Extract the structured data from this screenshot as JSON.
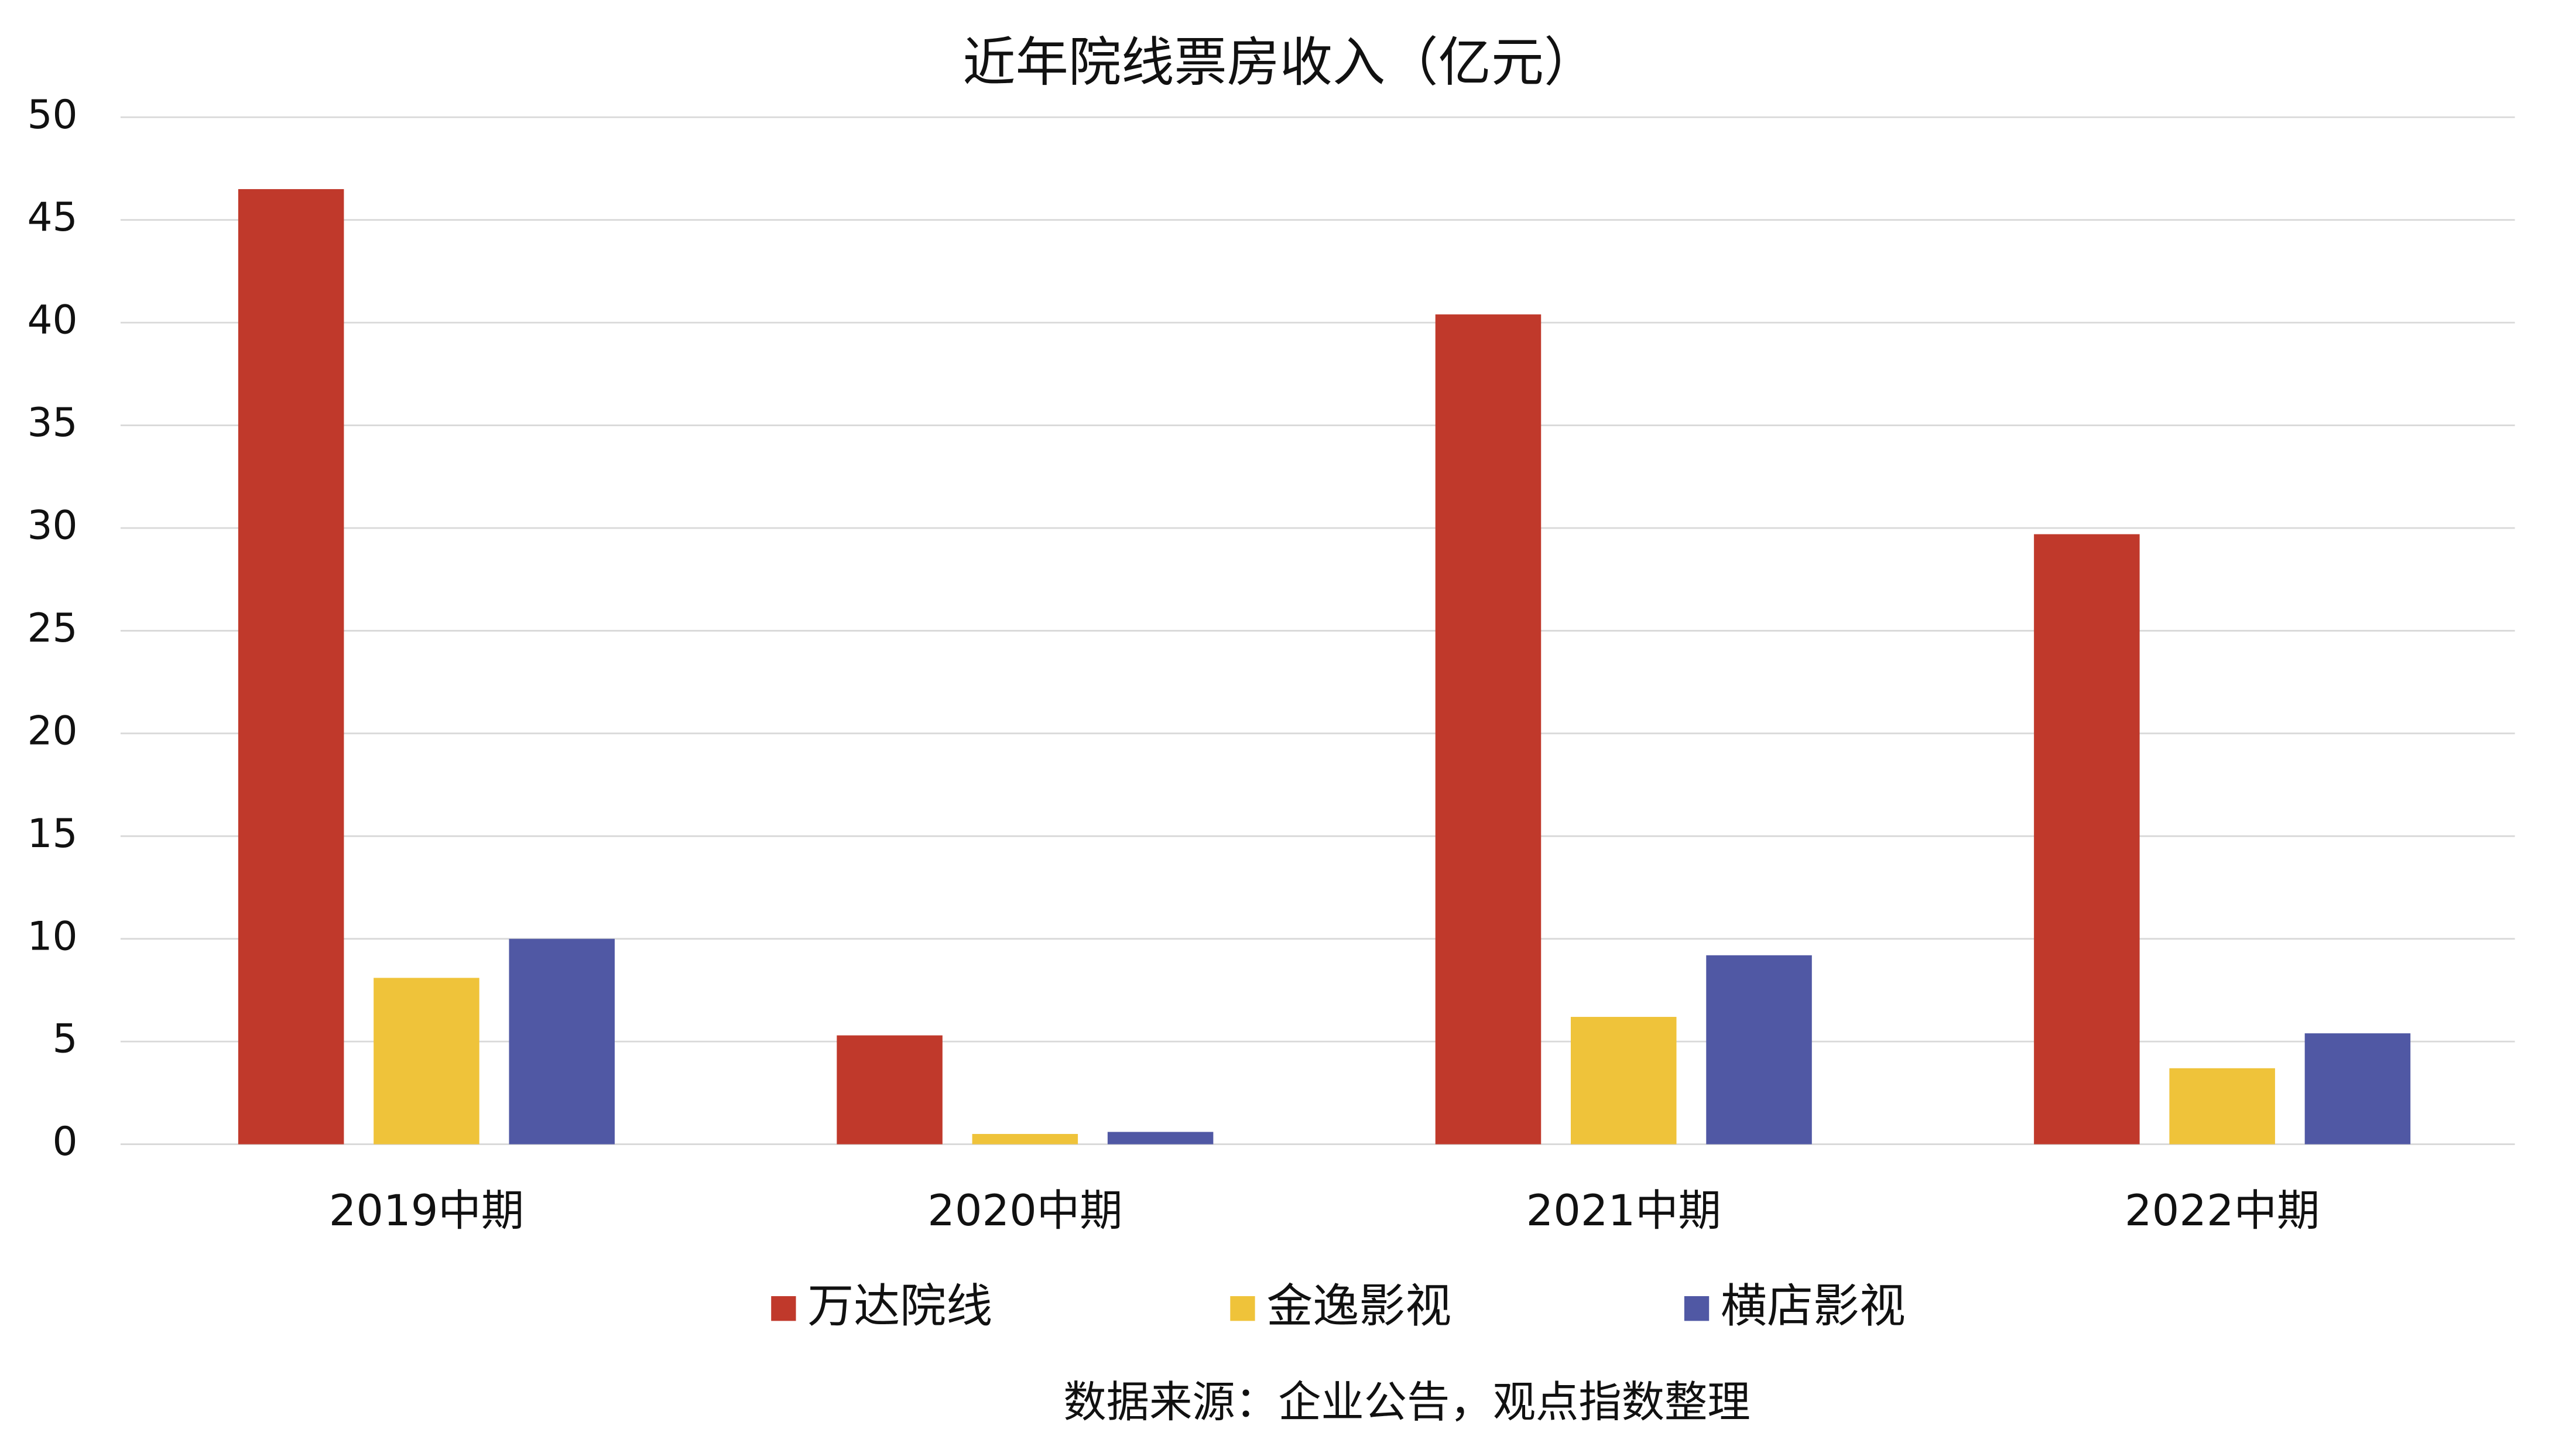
{
  "chart_data": {
    "type": "bar",
    "title": "近年院线票房收入（亿元）",
    "categories": [
      "2019中期",
      "2020中期",
      "2021中期",
      "2022中期"
    ],
    "series": [
      {
        "name": "万达院线",
        "color": "#c0392b",
        "values": [
          46.5,
          5.3,
          40.4,
          29.7
        ]
      },
      {
        "name": "金逸影视",
        "color": "#efc33a",
        "values": [
          8.1,
          0.5,
          6.2,
          3.7
        ]
      },
      {
        "name": "横店影视",
        "color": "#5058a4",
        "values": [
          10.0,
          0.6,
          9.2,
          5.4
        ]
      }
    ],
    "ylim": [
      0,
      50
    ],
    "yticks": [
      0,
      5,
      10,
      15,
      20,
      25,
      30,
      35,
      40,
      45,
      50
    ],
    "grid": true,
    "legend": "bottom",
    "source": "数据来源：企业公告，观点指数整理"
  }
}
